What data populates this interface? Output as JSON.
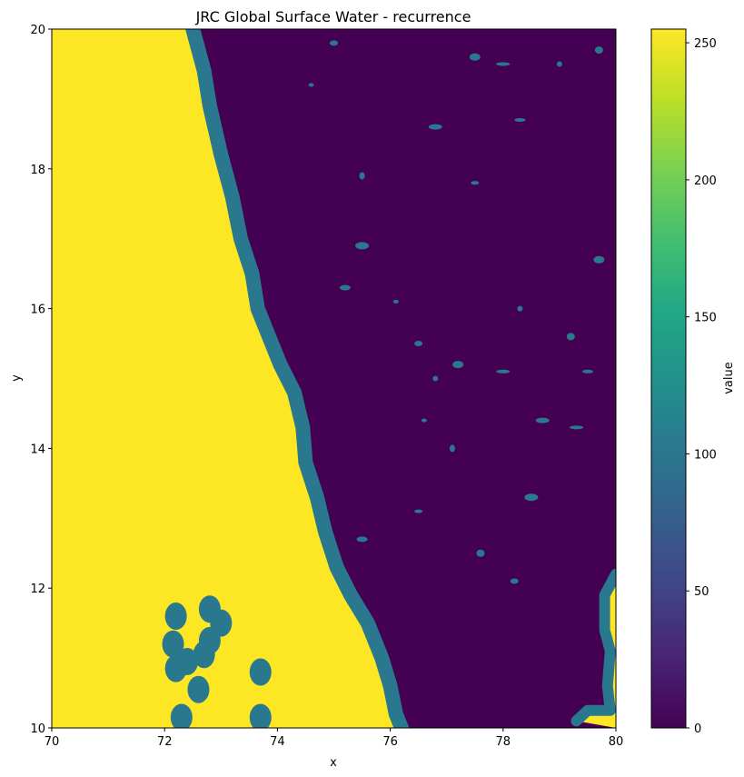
{
  "chart_data": {
    "type": "heatmap",
    "title": "JRC Global Surface Water - recurrence",
    "xlabel": "x",
    "ylabel": "y",
    "xlim": [
      70,
      80
    ],
    "ylim": [
      10,
      20
    ],
    "x_ticks": [
      "70",
      "72",
      "74",
      "76",
      "78",
      "80"
    ],
    "y_ticks": [
      "10",
      "12",
      "14",
      "16",
      "18",
      "20"
    ],
    "colorbar": {
      "label": "value",
      "range": [
        0,
        255
      ],
      "ticks": [
        "0",
        "50",
        "100",
        "150",
        "200",
        "250"
      ],
      "colormap": "viridis"
    },
    "colors": {
      "nodata": "#fde725",
      "land": "#440154",
      "recurrence": "#2a788e"
    },
    "values": {
      "nodata": 255,
      "land": 0,
      "recurrence": 100
    },
    "coastline": [
      [
        72.5,
        20.0
      ],
      [
        72.7,
        19.4
      ],
      [
        72.8,
        18.9
      ],
      [
        73.0,
        18.2
      ],
      [
        73.2,
        17.6
      ],
      [
        73.35,
        17.0
      ],
      [
        73.55,
        16.5
      ],
      [
        73.65,
        16.0
      ],
      [
        73.85,
        15.6
      ],
      [
        74.05,
        15.2
      ],
      [
        74.3,
        14.8
      ],
      [
        74.45,
        14.3
      ],
      [
        74.5,
        13.8
      ],
      [
        74.7,
        13.3
      ],
      [
        74.85,
        12.8
      ],
      [
        75.05,
        12.3
      ],
      [
        75.3,
        11.9
      ],
      [
        75.6,
        11.5
      ],
      [
        75.85,
        11.0
      ],
      [
        76.0,
        10.6
      ],
      [
        76.1,
        10.2
      ],
      [
        76.2,
        10.0
      ]
    ],
    "islands": [
      [
        72.2,
        11.6
      ],
      [
        72.8,
        11.7
      ],
      [
        73.0,
        11.5
      ],
      [
        72.15,
        11.2
      ],
      [
        72.8,
        11.25
      ],
      [
        72.7,
        11.05
      ],
      [
        72.4,
        10.95
      ],
      [
        72.2,
        10.85
      ],
      [
        72.6,
        10.55
      ],
      [
        73.7,
        10.8
      ],
      [
        72.3,
        10.15
      ],
      [
        73.7,
        10.15
      ]
    ],
    "lakes": [
      [
        74.6,
        19.2
      ],
      [
        75.0,
        19.8
      ],
      [
        77.5,
        19.6
      ],
      [
        78.0,
        19.5
      ],
      [
        79.0,
        19.5
      ],
      [
        79.7,
        19.7
      ],
      [
        78.3,
        18.7
      ],
      [
        76.8,
        18.6
      ],
      [
        75.5,
        17.9
      ],
      [
        77.5,
        17.8
      ],
      [
        75.2,
        16.3
      ],
      [
        75.5,
        16.9
      ],
      [
        76.1,
        16.1
      ],
      [
        76.5,
        15.5
      ],
      [
        77.2,
        15.2
      ],
      [
        78.0,
        15.1
      ],
      [
        78.3,
        16.0
      ],
      [
        79.2,
        15.6
      ],
      [
        79.5,
        15.1
      ],
      [
        78.7,
        14.4
      ],
      [
        77.1,
        14.0
      ],
      [
        76.5,
        13.1
      ],
      [
        75.5,
        12.7
      ],
      [
        78.5,
        13.3
      ],
      [
        76.6,
        14.4
      ],
      [
        78.2,
        12.1
      ],
      [
        79.7,
        16.7
      ],
      [
        79.3,
        14.3
      ],
      [
        76.8,
        15.0
      ],
      [
        77.6,
        12.5
      ]
    ],
    "east_coast": [
      [
        80.0,
        12.2
      ],
      [
        79.8,
        11.9
      ],
      [
        79.8,
        11.4
      ],
      [
        79.9,
        11.1
      ],
      [
        79.85,
        10.6
      ],
      [
        79.9,
        10.25
      ],
      [
        79.5,
        10.25
      ],
      [
        79.3,
        10.1
      ]
    ]
  }
}
